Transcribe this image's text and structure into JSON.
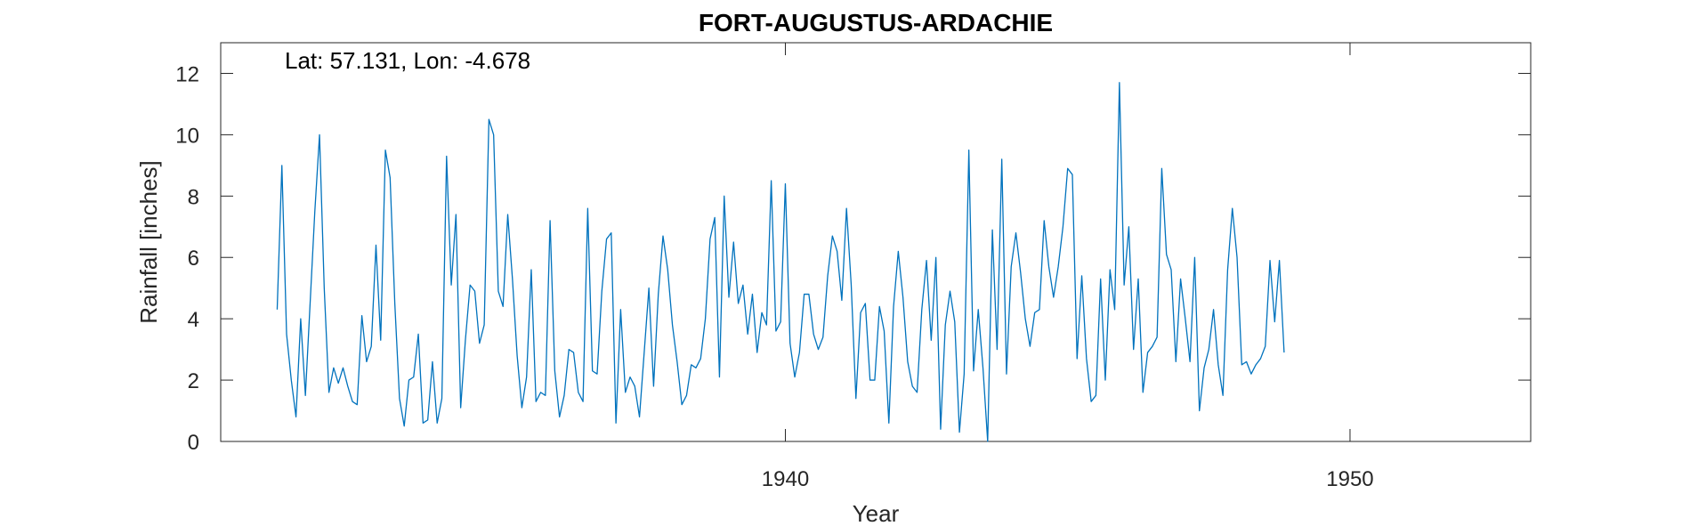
{
  "chart_data": {
    "type": "line",
    "title": "FORT-AUGUSTUS-ARDACHIE",
    "annotation": "Lat: 57.131, Lon: -4.678",
    "xlabel": "Year",
    "ylabel": "Rainfall [inches]",
    "xlim": [
      1930.0,
      1953.2
    ],
    "ylim": [
      0,
      13
    ],
    "xticks": [
      1940,
      1950
    ],
    "yticks": [
      0,
      2,
      4,
      6,
      8,
      10,
      12
    ],
    "grid": false,
    "line_color": "#0072BD",
    "series": [
      {
        "x_start": 1931.0,
        "x_step": 0.08333,
        "values": [
          4.3,
          9.0,
          3.5,
          2.0,
          0.8,
          4.0,
          1.5,
          4.5,
          7.5,
          10.0,
          5.0,
          1.6,
          2.4,
          1.9,
          2.4,
          1.8,
          1.3,
          1.2,
          4.1,
          2.6,
          3.1,
          6.4,
          3.3,
          9.5,
          8.6,
          4.5,
          1.4,
          0.5,
          2.0,
          2.1,
          3.5,
          0.6,
          0.7,
          2.6,
          0.6,
          1.4,
          9.3,
          5.1,
          7.4,
          1.1,
          3.3,
          5.1,
          4.9,
          3.2,
          3.8,
          10.5,
          10.0,
          4.9,
          4.4,
          7.4,
          5.3,
          2.8,
          1.1,
          2.1,
          5.6,
          1.3,
          1.6,
          1.5,
          7.2,
          2.3,
          0.8,
          1.5,
          3.0,
          2.9,
          1.6,
          1.3,
          7.6,
          2.3,
          2.2,
          4.9,
          6.6,
          6.8,
          0.6,
          4.3,
          1.6,
          2.1,
          1.8,
          0.8,
          2.9,
          5.0,
          1.8,
          4.8,
          6.7,
          5.6,
          3.8,
          2.6,
          1.2,
          1.5,
          2.5,
          2.4,
          2.7,
          4.0,
          6.6,
          7.3,
          2.1,
          8.0,
          4.7,
          6.5,
          4.5,
          5.1,
          3.5,
          4.8,
          2.9,
          4.2,
          3.8,
          8.5,
          3.6,
          3.9,
          8.4,
          3.2,
          2.1,
          2.9,
          4.8,
          4.8,
          3.5,
          3.0,
          3.4,
          5.4,
          6.7,
          6.2,
          4.6,
          7.6,
          5.1,
          1.4,
          4.2,
          4.5,
          2.0,
          2.0,
          4.4,
          3.6,
          0.6,
          4.4,
          6.2,
          4.7,
          2.6,
          1.8,
          1.6,
          4.3,
          5.9,
          3.3,
          6.0,
          0.4,
          3.8,
          4.9,
          3.9,
          0.3,
          2.2,
          9.5,
          2.3,
          4.3,
          2.4,
          0.0,
          6.9,
          3.0,
          9.2,
          2.2,
          5.7,
          6.8,
          5.5,
          4.0,
          3.1,
          4.2,
          4.3,
          7.2,
          5.7,
          4.7,
          5.7,
          7.0,
          8.9,
          8.7,
          2.7,
          5.4,
          2.7,
          1.3,
          1.5,
          5.3,
          2.0,
          5.6,
          4.3,
          11.7,
          5.1,
          7.0,
          3.0,
          5.3,
          1.6,
          2.9,
          3.1,
          3.4,
          8.9,
          6.1,
          5.6,
          2.6,
          5.3,
          4.0,
          2.6,
          6.0,
          1.0,
          2.4,
          3.0,
          4.3,
          2.5,
          1.5,
          5.6,
          7.6,
          6.0,
          2.5,
          2.6,
          2.2,
          2.5,
          2.7,
          3.1,
          5.9,
          3.9,
          5.9,
          2.9
        ]
      }
    ]
  }
}
